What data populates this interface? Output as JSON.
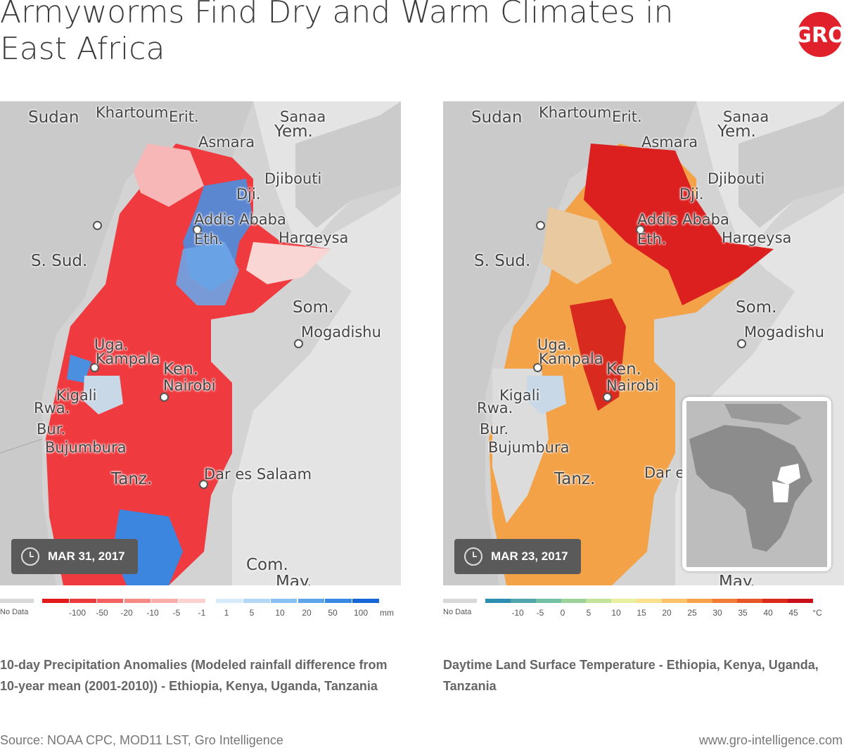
{
  "title": "Armyworms Find Dry and Warm Climates in East Africa",
  "logo": {
    "text": "GRO",
    "color": "#e0202a"
  },
  "maps": [
    {
      "date": "MAR  31, 2017",
      "places": [
        "Sudan",
        "Khartoum",
        "Erit.",
        "Sanaa",
        "Yem.",
        "Asmara",
        "Djibouti",
        "Dji.",
        "Addis Ababa",
        "Eth.",
        "Hargeysa",
        "S. Sud.",
        "Som.",
        "Mogadishu",
        "Uga.",
        "Kampala",
        "Ken.",
        "Nairobi",
        "Kigali",
        "Rwa.",
        "Bur.",
        "Bujumbura",
        "Tanz.",
        "Dar es Salaam",
        "Com.",
        "May."
      ],
      "legend": {
        "no_data": "No Data",
        "labels": [
          "-100",
          "-50",
          "-20",
          "-10",
          "-5",
          "-1",
          "1",
          "5",
          "10",
          "20",
          "50",
          "100",
          "mm"
        ],
        "colors": [
          "#e31a1c",
          "#ec3a3c",
          "#f2605f",
          "#f68886",
          "#f9aeac",
          "#fcd2d0",
          "#d6ebfb",
          "#b3d8f7",
          "#88c0f2",
          "#5ea5eb",
          "#3688e2",
          "#1466d6"
        ]
      },
      "caption": "10-day Precipitation Anomalies (Modeled rainfall difference from 10-year mean (2001-2010)) - Ethiopia, Kenya, Uganda, Tanzania"
    },
    {
      "date": "MAR 23, 2017",
      "places": [
        "Sudan",
        "Khartoum",
        "Erit.",
        "Sanaa",
        "Yem.",
        "Asmara",
        "Djibouti",
        "Dji.",
        "Addis Ababa",
        "Eth.",
        "Hargeysa",
        "S. Sud.",
        "Som.",
        "Mogadishu",
        "Uga.",
        "Kampala",
        "Ken.",
        "Nairobi",
        "Kigali",
        "Rwa.",
        "Bur.",
        "Bujumbura",
        "Tanz.",
        "Dar e",
        "May."
      ],
      "legend": {
        "no_data": "No Data",
        "labels": [
          "-10",
          "-5",
          "0",
          "5",
          "10",
          "15",
          "20",
          "25",
          "30",
          "35",
          "40",
          "45",
          "°C"
        ],
        "colors": [
          "#2c8fb0",
          "#4fa7ad",
          "#74c0a4",
          "#9ad29a",
          "#c3e39a",
          "#e8ef9f",
          "#fbe08e",
          "#fbc36a",
          "#f7a24b",
          "#f17c35",
          "#e85526",
          "#d92a1c",
          "#c8101a"
        ]
      },
      "caption": "Daytime Land Surface Temperature - Ethiopia, Kenya, Uganda, Tanzania"
    }
  ],
  "footer": {
    "source": "Source: NOAA CPC, MOD11 LST, Gro Intelligence",
    "url": "www.gro-intelligence.com"
  }
}
